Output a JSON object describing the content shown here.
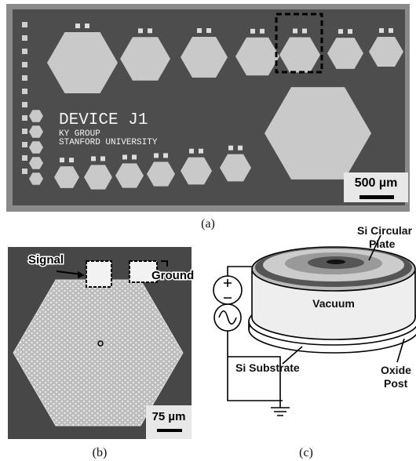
{
  "panel_a": {
    "caption": "(a)",
    "device_name": "DEVICE J1",
    "group": "KY GROUP",
    "university": "STANFORD UNIVERSITY",
    "scale_bar": "500 µm"
  },
  "panel_b": {
    "caption": "(b)",
    "signal": "Signal",
    "ground": "Ground",
    "scale_bar": "75 µm"
  },
  "panel_c": {
    "caption": "(c)",
    "plate": [
      "Si Circular",
      "Plate"
    ],
    "vacuum": "Vacuum",
    "substrate": "Si Substrate",
    "post": [
      "Oxide",
      "Post"
    ]
  }
}
